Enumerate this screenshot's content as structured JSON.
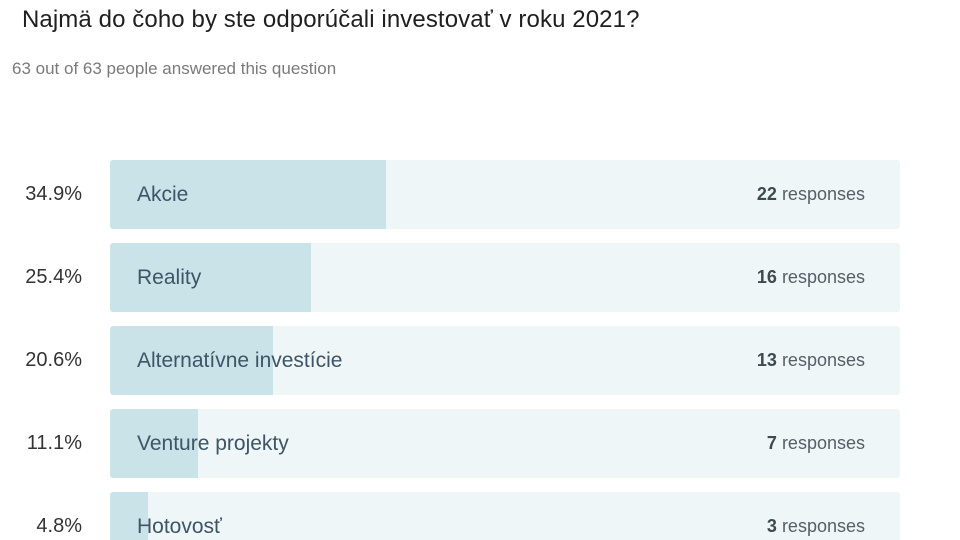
{
  "question": {
    "title": "Najmä do čoho by ste odporúčali investovať v roku 2021?",
    "answered_text": "63 out of 63 people answered this question"
  },
  "colors": {
    "track": "#eef6f8",
    "fill": "#c9e3e9",
    "label_text": "#3d5566"
  },
  "chart_data": {
    "type": "bar",
    "orientation": "horizontal",
    "total_respondents": 63,
    "response_word": "responses",
    "categories": [
      "Akcie",
      "Reality",
      "Alternatívne investície",
      "Venture projekty",
      "Hotovosť"
    ],
    "percent_labels": [
      "34.9%",
      "25.4%",
      "20.6%",
      "11.1%",
      "4.8%"
    ],
    "values": [
      22,
      16,
      13,
      7,
      3
    ]
  }
}
